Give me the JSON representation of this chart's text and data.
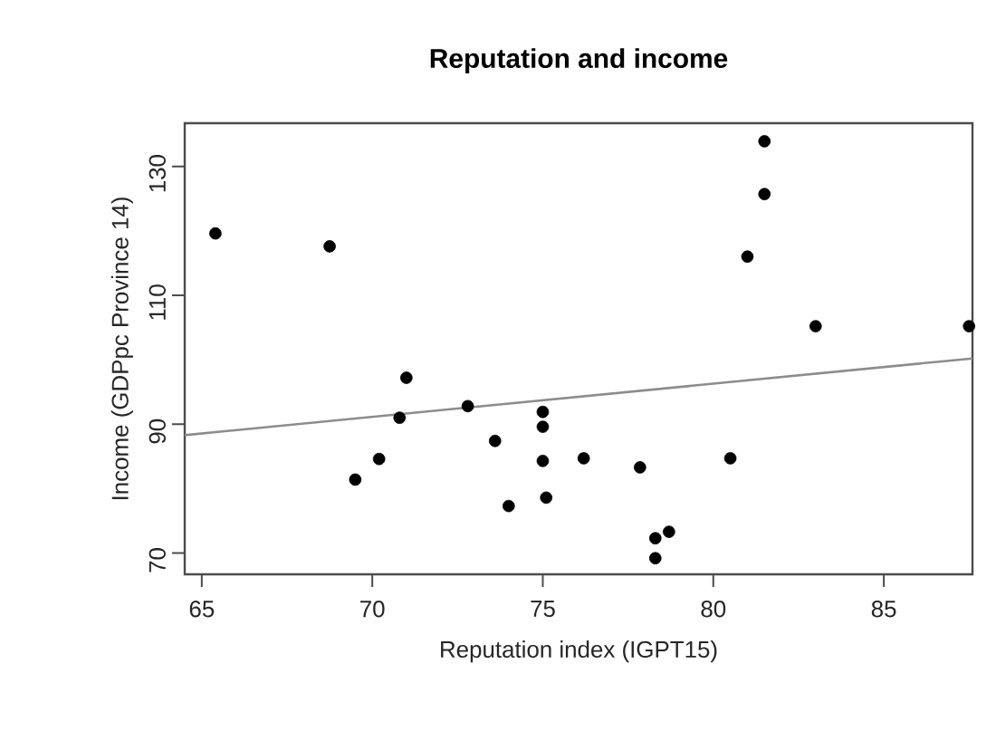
{
  "chart_data": {
    "type": "scatter",
    "title": "Reputation and income",
    "xlabel": "Reputation index (IGPT15)",
    "ylabel": "Income (GDPpc Province 14)",
    "xlim": [
      64.5,
      87.6
    ],
    "ylim": [
      66.7,
      136.7
    ],
    "xticks": [
      65,
      70,
      75,
      80,
      85
    ],
    "yticks": [
      70,
      90,
      110,
      130
    ],
    "series": [
      {
        "color": "#000000",
        "marker": "circle",
        "x": [
          65.4,
          68.75,
          71.0,
          70.8,
          72.8,
          75.0,
          75.0,
          73.6,
          70.2,
          69.5,
          75.0,
          75.1,
          74.0,
          76.2,
          77.85,
          78.3,
          78.7,
          78.3,
          80.5,
          81.0,
          81.5,
          81.5,
          83.0,
          87.5
        ],
        "values": [
          119.6,
          117.6,
          97.2,
          91.0,
          92.8,
          91.9,
          89.6,
          87.4,
          84.6,
          81.4,
          84.3,
          78.6,
          77.3,
          84.7,
          83.3,
          72.3,
          73.3,
          69.2,
          84.7,
          116.0,
          125.7,
          133.9,
          105.2,
          105.2
        ]
      },
      {
        "type": "line",
        "color": "#8c8c8c",
        "marker": "none",
        "line_style": "solid",
        "x": [
          64.5,
          87.6
        ],
        "values": [
          88.3,
          100.2
        ]
      }
    ]
  }
}
